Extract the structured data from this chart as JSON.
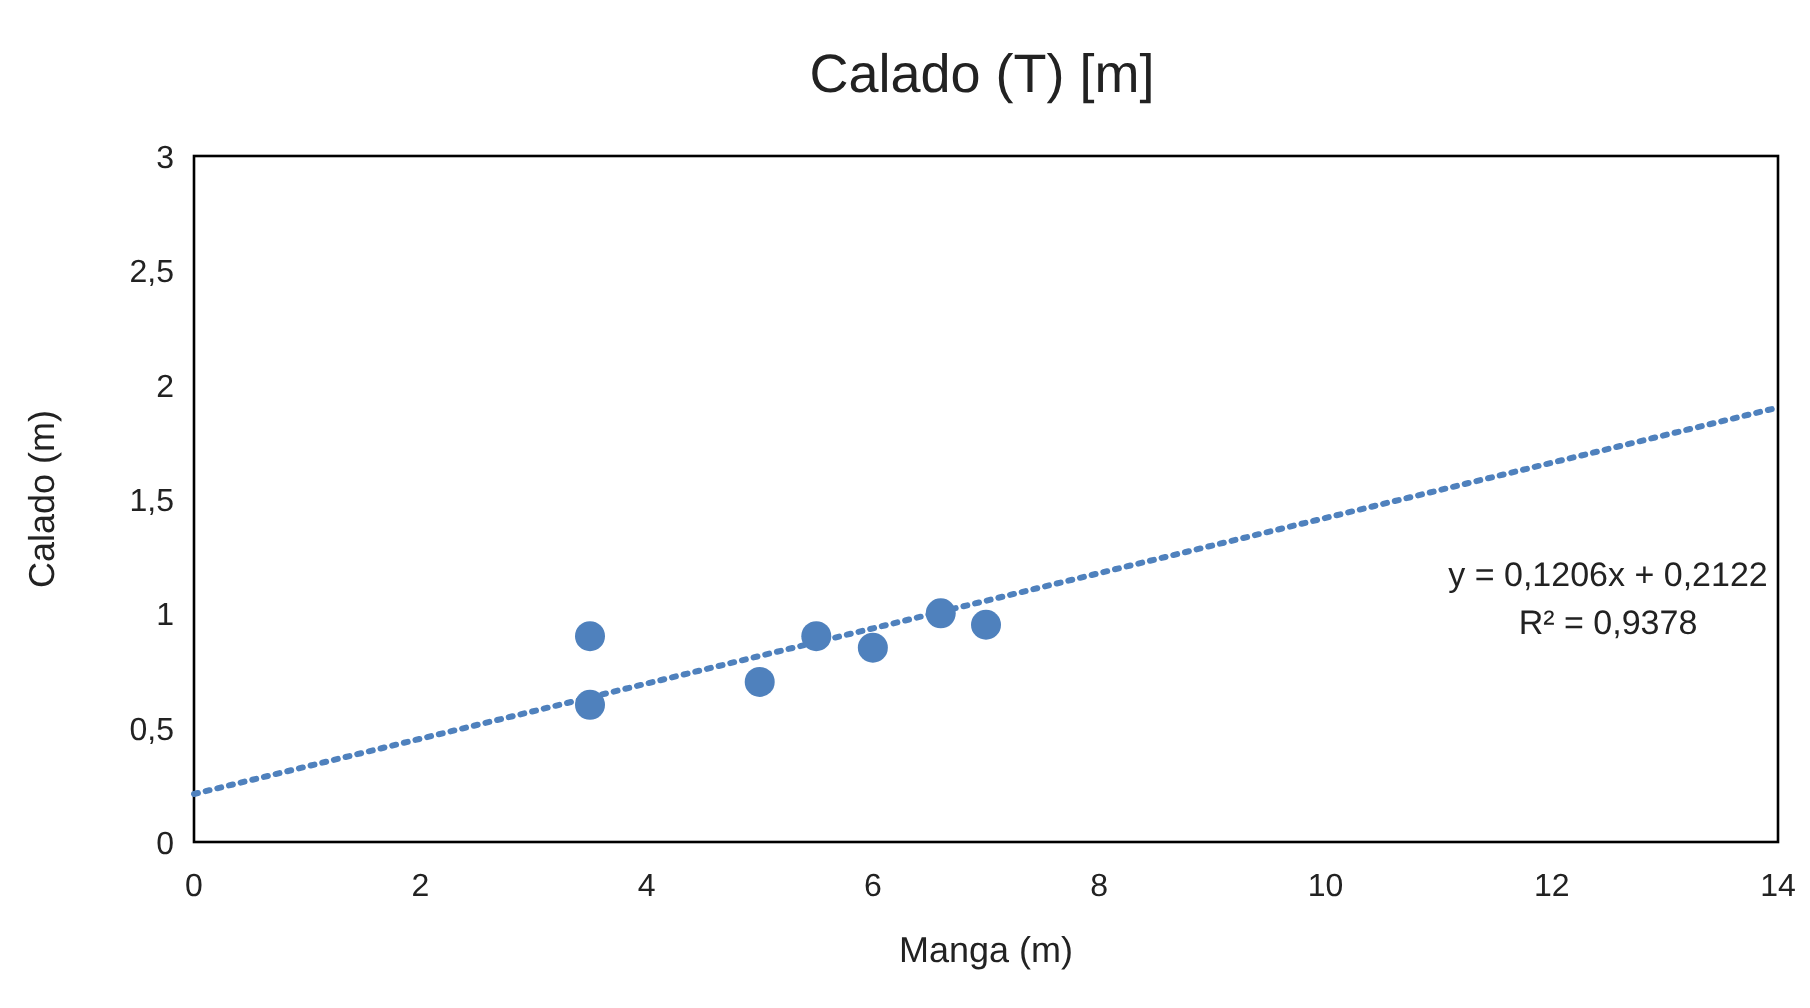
{
  "chart_data": {
    "type": "scatter",
    "title": "Calado (T) [m]",
    "xlabel": "Manga (m)",
    "ylabel": "Calado (m)",
    "xlim": [
      0,
      14
    ],
    "ylim": [
      0,
      3
    ],
    "xticks": [
      0,
      2,
      4,
      6,
      8,
      10,
      12,
      14
    ],
    "yticks": [
      0,
      {
        "value": 0.5,
        "label": "0,5"
      },
      1,
      {
        "value": 1.5,
        "label": "1,5"
      },
      2,
      {
        "value": 2.5,
        "label": "2,5"
      },
      3
    ],
    "grid": false,
    "series": [
      {
        "color": "#4f81bd",
        "marker": "circle",
        "x": [
          3.5,
          3.5,
          5,
          5.5,
          6,
          6.6,
          7
        ],
        "values": [
          0.9,
          0.6,
          0.7,
          0.9,
          0.85,
          1.0,
          0.95
        ]
      },
      {
        "type": "line",
        "color": "#4f81bd",
        "line_style": "dotted",
        "x": [
          0,
          14
        ],
        "values": [
          0.21,
          1.9
        ]
      }
    ],
    "annotations": [
      "y = 0,1206x + 0,2122",
      "R² = 0,9378"
    ]
  }
}
